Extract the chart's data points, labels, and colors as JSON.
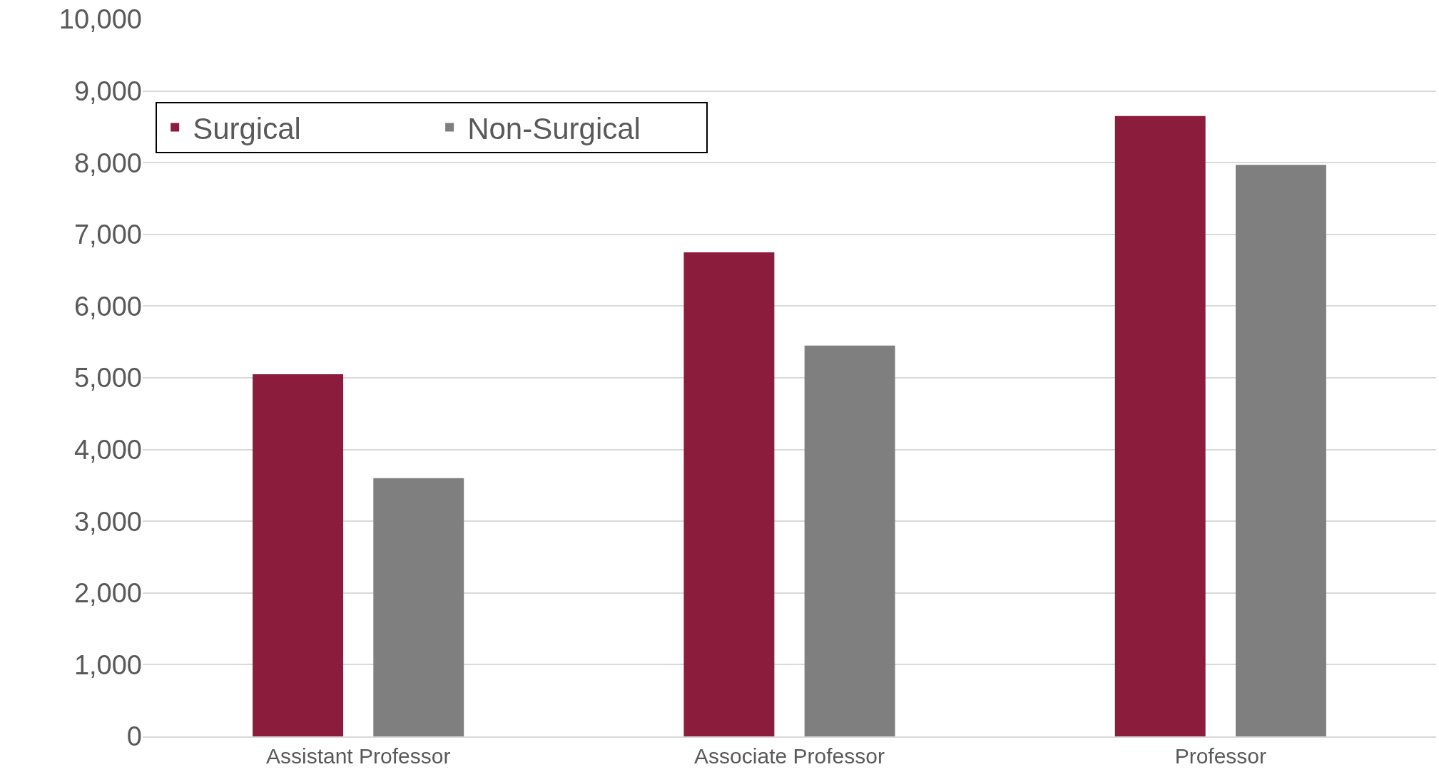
{
  "chart_data": {
    "type": "bar",
    "categories": [
      "Assistant Professor",
      "Associate Professor",
      "Professor"
    ],
    "series": [
      {
        "name": "Surgical",
        "color": "#8c1c3b",
        "values": [
          5050,
          6750,
          8650
        ]
      },
      {
        "name": "Non-Surgical",
        "color": "#7f7f7f",
        "values": [
          3600,
          5450,
          7970
        ]
      }
    ],
    "ylim": [
      0,
      10000
    ],
    "yticks": [
      {
        "value": 0,
        "label": "0"
      },
      {
        "value": 1000,
        "label": "1,000"
      },
      {
        "value": 2000,
        "label": "2,000"
      },
      {
        "value": 3000,
        "label": "3,000"
      },
      {
        "value": 4000,
        "label": "4,000"
      },
      {
        "value": 5000,
        "label": "5,000"
      },
      {
        "value": 6000,
        "label": "6,000"
      },
      {
        "value": 7000,
        "label": "7,000"
      },
      {
        "value": 8000,
        "label": "8,000"
      },
      {
        "value": 9000,
        "label": "9,000"
      },
      {
        "value": 10000,
        "label": "10,000"
      }
    ],
    "grid": "y",
    "legend": "top left"
  }
}
